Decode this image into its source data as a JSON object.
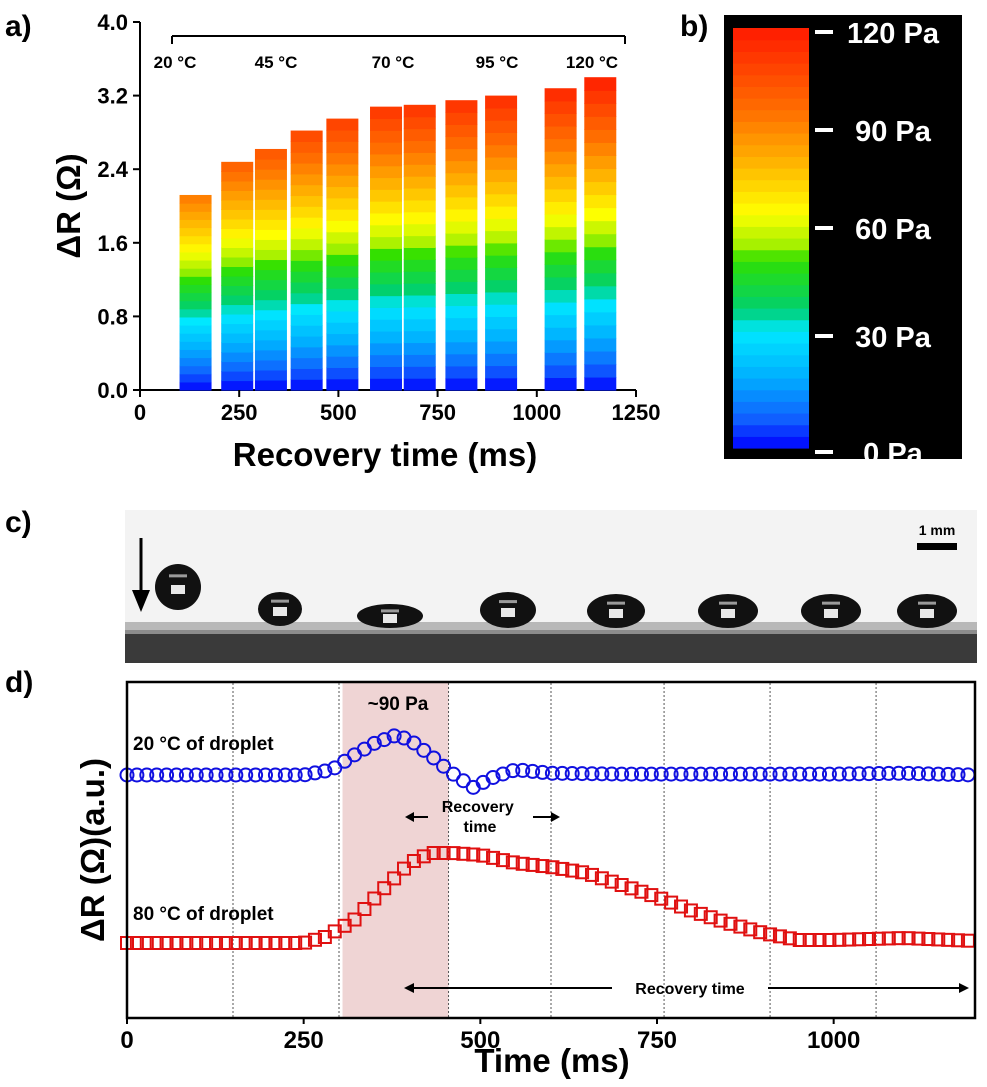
{
  "panels": {
    "a": "a)",
    "b": "b)",
    "c": "c)",
    "d": "d)"
  },
  "chart_data": [
    {
      "panel": "a",
      "type": "bar",
      "xlabel": "Recovery time (ms)",
      "ylabel": "ΔR (Ω)",
      "xlim": [
        0,
        1250
      ],
      "ylim": [
        0,
        4.0
      ],
      "x_ticks": [
        0,
        250,
        500,
        750,
        1000,
        1250
      ],
      "y_ticks": [
        0.0,
        0.8,
        1.6,
        2.4,
        3.2,
        4.0
      ],
      "y_tick_labels": [
        "0.0",
        "0.8",
        "1.6",
        "2.4",
        "3.2",
        "4.0"
      ],
      "temperature_labels": [
        "20 °C",
        "45 °C",
        "70 °C",
        "95 °C",
        "120 °C"
      ],
      "bars": [
        {
          "x": 140,
          "value": 2.12
        },
        {
          "x": 245,
          "value": 2.48
        },
        {
          "x": 330,
          "value": 2.62
        },
        {
          "x": 420,
          "value": 2.82
        },
        {
          "x": 510,
          "value": 2.95
        },
        {
          "x": 620,
          "value": 3.08
        },
        {
          "x": 705,
          "value": 3.1
        },
        {
          "x": 810,
          "value": 3.15
        },
        {
          "x": 910,
          "value": 3.2
        },
        {
          "x": 1060,
          "value": 3.28
        },
        {
          "x": 1160,
          "value": 3.4
        }
      ],
      "grid": false
    },
    {
      "panel": "b",
      "type": "colorbar",
      "ticks": [
        "120 Pa",
        "90 Pa",
        "60 Pa",
        "30 Pa",
        "0 Pa"
      ],
      "range": [
        0,
        120
      ],
      "colors": [
        "#0000ff",
        "#00aaff",
        "#00e0ff",
        "#00d060",
        "#40e000",
        "#ffff00",
        "#ffc000",
        "#ff7000",
        "#ff2000"
      ]
    },
    {
      "panel": "c",
      "type": "image",
      "scale_bar": "1 mm"
    },
    {
      "panel": "d",
      "type": "line",
      "xlabel": "Time (ms)",
      "ylabel": "ΔR (Ω)(a.u.)",
      "xlim": [
        0,
        1200
      ],
      "x_ticks": [
        0,
        250,
        500,
        750,
        1000
      ],
      "vertical_gridlines": [
        150,
        300,
        455,
        600,
        760,
        910,
        1060
      ],
      "highlight_range": [
        305,
        455
      ],
      "annotations": {
        "pressure": "~90 Pa",
        "recovery_short": "Recovery\ntime",
        "recovery_long": "Recovery time"
      },
      "series": [
        {
          "name": "20 °C of droplet",
          "color": "#1010e0",
          "marker": "circle",
          "x": [
            0,
            250,
            290,
            320,
            350,
            380,
            400,
            430,
            460,
            490,
            520,
            550,
            600,
            700,
            800,
            900,
            1000,
            1100,
            1200
          ],
          "y": [
            0.0,
            0.0,
            0.06,
            0.22,
            0.36,
            0.45,
            0.4,
            0.22,
            0.02,
            -0.14,
            -0.02,
            0.06,
            0.02,
            0.01,
            0.01,
            0.01,
            0.01,
            0.02,
            0.0
          ]
        },
        {
          "name": "80 °C of droplet",
          "color": "#e01010",
          "marker": "square",
          "x": [
            0,
            250,
            280,
            320,
            360,
            400,
            430,
            460,
            500,
            550,
            600,
            650,
            700,
            750,
            800,
            850,
            900,
            950,
            1000,
            1100,
            1200
          ],
          "y": [
            0.0,
            0.0,
            0.06,
            0.22,
            0.52,
            0.8,
            0.9,
            0.9,
            0.88,
            0.8,
            0.76,
            0.7,
            0.58,
            0.46,
            0.32,
            0.2,
            0.1,
            0.03,
            0.03,
            0.05,
            0.02
          ]
        }
      ]
    }
  ]
}
